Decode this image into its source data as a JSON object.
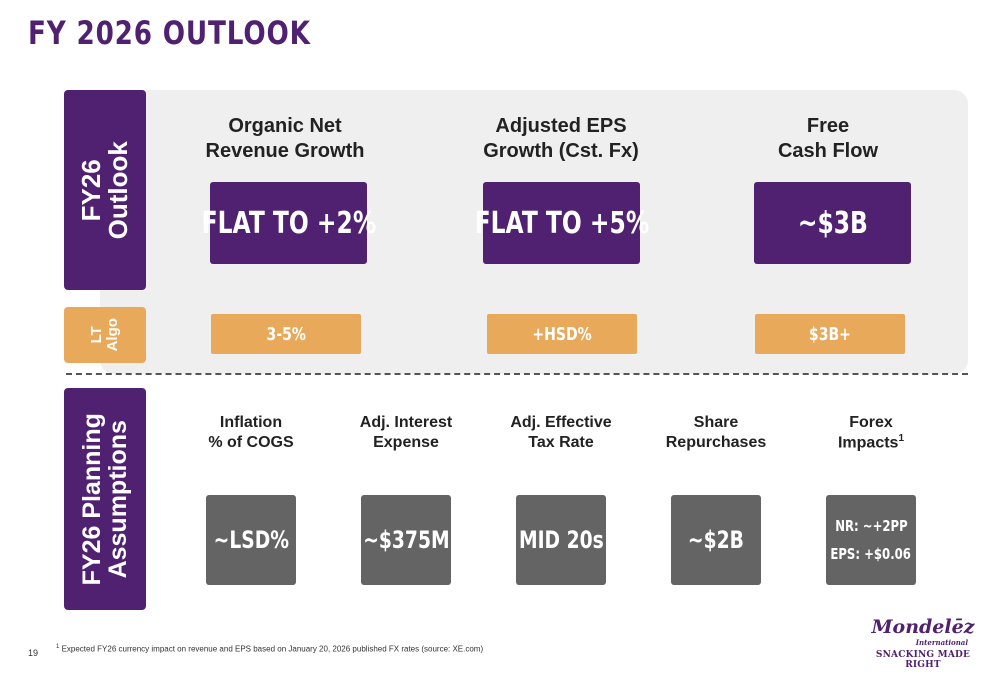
{
  "title": "FY 2026 OUTLOOK",
  "sections": {
    "outlook": "FY26\nOutlook",
    "lt_algo": "LT\nAlgo",
    "planning": "FY26 Planning\nAssumptions"
  },
  "metrics": [
    {
      "label": "Organic Net\nRevenue Growth",
      "fy26": "FLAT TO +2%",
      "lt": "3-5%"
    },
    {
      "label": "Adjusted EPS\nGrowth (Cst. Fx)",
      "fy26": "FLAT TO +5%",
      "lt": "+HSD%"
    },
    {
      "label": "Free\nCash Flow",
      "fy26": "~$3B",
      "lt": "$3B+"
    }
  ],
  "assumptions": [
    {
      "label": "Inflation\n% of COGS",
      "value": "~LSD%"
    },
    {
      "label": "Adj. Interest\nExpense",
      "value": "~$375M"
    },
    {
      "label": "Adj. Effective\nTax Rate",
      "value": "MID 20s"
    },
    {
      "label": "Share\nRepurchases",
      "value": "~$2B"
    },
    {
      "label": "Forex\nImpacts",
      "label_sup": "1",
      "value_line1": "NR: ~+2PP",
      "value_line2": "EPS: +$0.06"
    }
  ],
  "footnote": {
    "sup": "1",
    "text": " Expected FY26 currency impact on revenue and EPS based on January 20, 2026 published FX rates (source: XE.com)"
  },
  "page_number": "19",
  "logo": {
    "name": "Mondelēz",
    "sub": "International",
    "tagline": "SNACKING MADE RIGHT"
  }
}
